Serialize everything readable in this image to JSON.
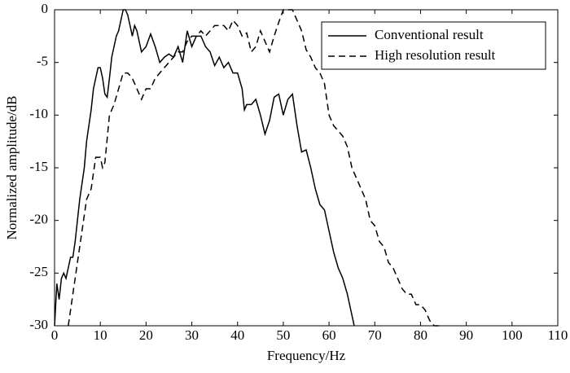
{
  "chart_data": {
    "type": "line",
    "xlabel": "Frequency/Hz",
    "ylabel": "Normalized amplitude/dB",
    "xlim": [
      0,
      110
    ],
    "xticks": [
      0,
      10,
      20,
      30,
      40,
      50,
      60,
      70,
      80,
      90,
      100,
      110
    ],
    "ylim": [
      -30,
      0
    ],
    "yticks": [
      -30,
      -25,
      -20,
      -15,
      -10,
      -5,
      0
    ],
    "legend": "upper right",
    "series": [
      {
        "name": "Conventional result",
        "color": "#000000",
        "style": "solid",
        "x": [
          0,
          0.5,
          1,
          1.5,
          2,
          2.5,
          3,
          3.5,
          4,
          4.5,
          5,
          5.5,
          6,
          6.5,
          7,
          7.5,
          8,
          8.5,
          9,
          9.5,
          10,
          10.5,
          11,
          11.5,
          12,
          12.5,
          13,
          13.5,
          14,
          14.5,
          15,
          15.5,
          16,
          16.5,
          17,
          17.5,
          18,
          19,
          20,
          21,
          22,
          23,
          24,
          25,
          26,
          27,
          28,
          29,
          30,
          31,
          32,
          33,
          34,
          35,
          36,
          37,
          38,
          39,
          40,
          41,
          41.5,
          42,
          43,
          44,
          45,
          46,
          47,
          48,
          49,
          50,
          51,
          52,
          53,
          54,
          55,
          56,
          57,
          58,
          59,
          60,
          61,
          62,
          63,
          64,
          65,
          65.5
        ],
        "values": [
          -30,
          -26,
          -27.5,
          -25.5,
          -25,
          -25.5,
          -24.5,
          -23.5,
          -23.5,
          -22,
          -20,
          -18,
          -16.5,
          -15,
          -12.5,
          -11,
          -9.5,
          -7.5,
          -6.5,
          -5.5,
          -5.5,
          -6.5,
          -8,
          -8.3,
          -6.5,
          -4.5,
          -3.5,
          -2.5,
          -2,
          -1,
          0,
          0,
          -0.5,
          -1.5,
          -2.5,
          -1.5,
          -2,
          -4,
          -3.5,
          -2.3,
          -3.5,
          -5,
          -4.5,
          -4.2,
          -4.5,
          -3.5,
          -5,
          -2,
          -3.5,
          -2.5,
          -2.5,
          -3.5,
          -4,
          -5.3,
          -4.5,
          -5.5,
          -5,
          -6,
          -6,
          -7.5,
          -9.5,
          -9,
          -9,
          -8.5,
          -10,
          -11.8,
          -10.5,
          -8.3,
          -8,
          -10,
          -8.5,
          -8,
          -11,
          -13.5,
          -13.3,
          -15,
          -17,
          -18.5,
          -19,
          -21,
          -23,
          -24.5,
          -25.5,
          -27,
          -29,
          -30
        ]
      },
      {
        "name": "High resolution result",
        "color": "#000000",
        "style": "dashed",
        "x": [
          3,
          4,
          5,
          6,
          7,
          8,
          9,
          10,
          10.5,
          11,
          12,
          13,
          14,
          15,
          16,
          17,
          18,
          19,
          20,
          21,
          22,
          23,
          24,
          25,
          26,
          27,
          28,
          29,
          30,
          31,
          32,
          33,
          34,
          35,
          36,
          37,
          38,
          39,
          40,
          41,
          42,
          43,
          44,
          45,
          46,
          47,
          48,
          49,
          50,
          51,
          52,
          53,
          54,
          55,
          56,
          57,
          58,
          59,
          60,
          61,
          62,
          63,
          64,
          65,
          66,
          67,
          68,
          69,
          70,
          71,
          72,
          73,
          74,
          75,
          76,
          77,
          78,
          79,
          80,
          81,
          82,
          83,
          84
        ],
        "values": [
          -30,
          -27,
          -24,
          -21,
          -18,
          -17,
          -14,
          -14,
          -15,
          -14.5,
          -10,
          -9,
          -7.5,
          -6,
          -6,
          -6.5,
          -7.5,
          -8.5,
          -7.5,
          -7.5,
          -6.5,
          -6,
          -5.5,
          -5,
          -4.5,
          -4,
          -4,
          -3,
          -2.5,
          -2.5,
          -2,
          -2.5,
          -2,
          -1.5,
          -1.5,
          -1.5,
          -2,
          -1,
          -1.5,
          -2.5,
          -2.2,
          -4,
          -3.5,
          -2,
          -3,
          -4,
          -2.5,
          -1.2,
          0,
          0,
          0,
          -1,
          -2,
          -3.8,
          -4.5,
          -5.5,
          -6,
          -7,
          -10,
          -11,
          -11.5,
          -12,
          -13,
          -15,
          -16,
          -17,
          -18,
          -20,
          -20.5,
          -22,
          -22.5,
          -24,
          -24.5,
          -25.5,
          -26.5,
          -27,
          -27,
          -28,
          -28,
          -28.5,
          -29.5,
          -30,
          -30
        ]
      }
    ]
  }
}
